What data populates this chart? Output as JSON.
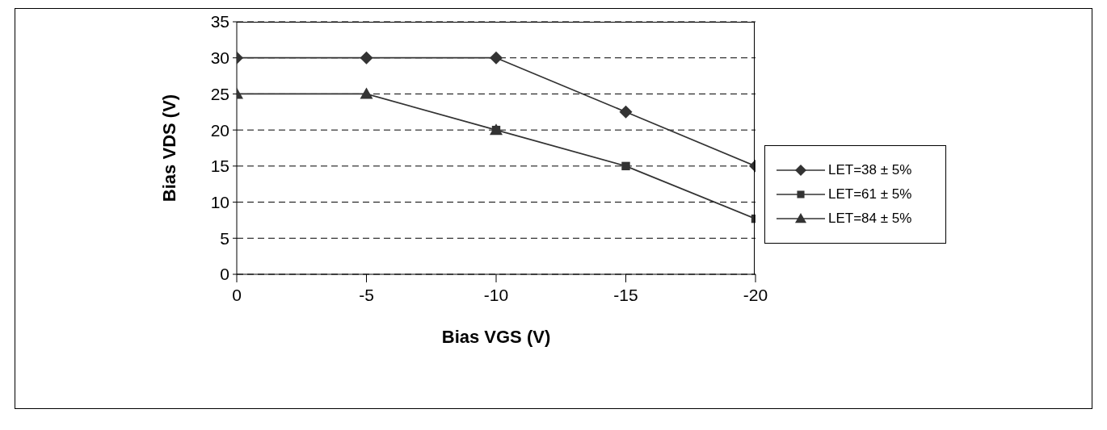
{
  "chart_data": {
    "type": "line",
    "xlabel": "Bias VGS (V)",
    "ylabel": "Bias VDS (V)",
    "x": [
      0,
      -5,
      -10,
      -15,
      -20
    ],
    "xlim": [
      0,
      -20
    ],
    "xticks": [
      0,
      -5,
      -10,
      -15,
      -20
    ],
    "ylim": [
      0,
      35
    ],
    "yticks": [
      0,
      5,
      10,
      15,
      20,
      25,
      30,
      35
    ],
    "grid": "y",
    "legend": "right",
    "line_style": "solid",
    "series": [
      {
        "name": "LET=38 ± 5%",
        "color": "#333333",
        "marker": "diamond",
        "values": [
          30,
          30,
          30,
          22.5,
          15
        ]
      },
      {
        "name": "LET=61 ± 5%",
        "color": "#333333",
        "marker": "square",
        "values": [
          null,
          null,
          20,
          15,
          7.7
        ]
      },
      {
        "name": "LET=84 ± 5%",
        "color": "#333333",
        "marker": "triangle",
        "values": [
          25,
          25,
          20,
          null,
          null
        ]
      }
    ]
  }
}
